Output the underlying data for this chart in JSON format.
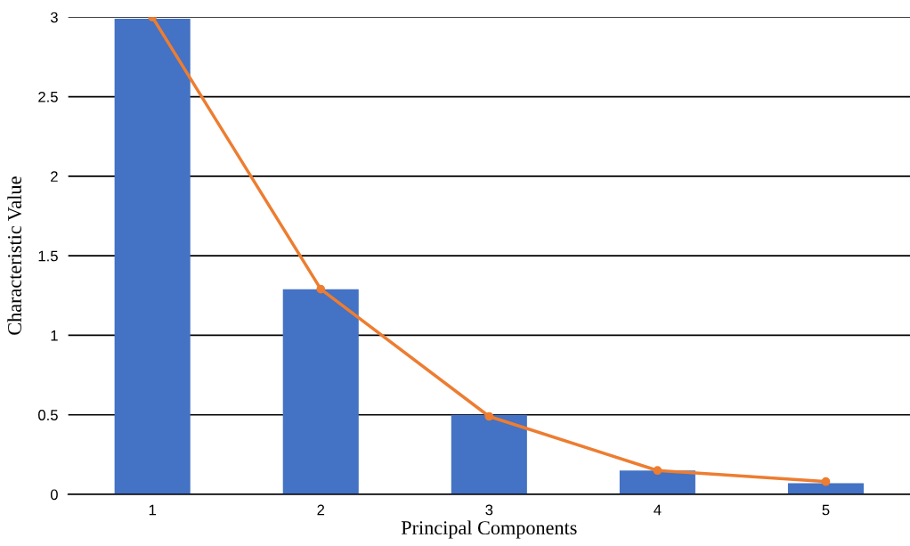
{
  "chart_data": {
    "type": "bar",
    "xlabel": "Principal Components",
    "ylabel": "Characteristic Value",
    "categories": [
      "1",
      "2",
      "3",
      "4",
      "5"
    ],
    "series": [
      {
        "color": "#4472c4",
        "values": [
          2.99,
          1.29,
          0.5,
          0.15,
          0.07
        ]
      },
      {
        "type": "line",
        "color": "#ed7d31",
        "values": [
          3.0,
          1.29,
          0.49,
          0.15,
          0.08
        ],
        "marker": "circle"
      }
    ],
    "ylim": [
      0,
      3
    ],
    "yticks": [
      0,
      0.5,
      1,
      1.5,
      2,
      2.5,
      3
    ],
    "grid": "y"
  }
}
